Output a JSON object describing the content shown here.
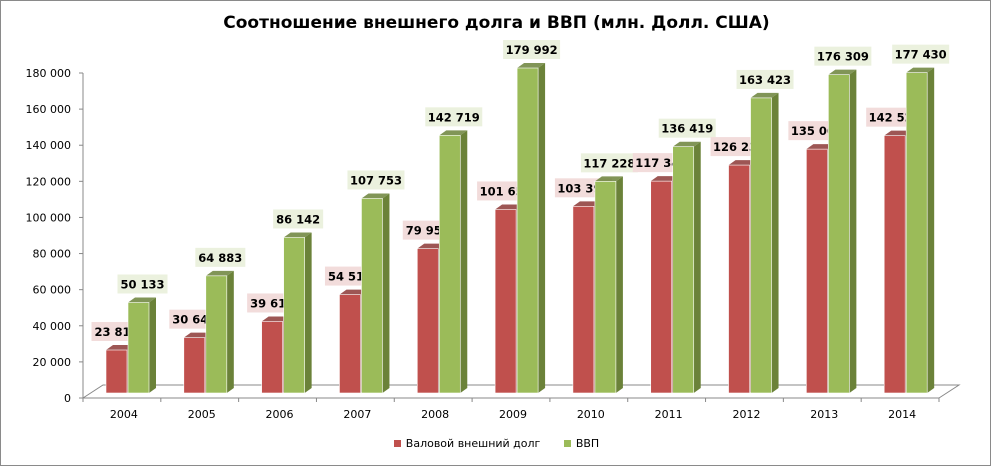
{
  "chart_data": {
    "type": "bar",
    "title": "Соотношение  внешнего долга и ВВП (млн. Долл. США)",
    "xlabel": "",
    "ylabel": "",
    "ylim": [
      0,
      180000
    ],
    "yticks": [
      "0",
      "20 000",
      "40 000",
      "60 000",
      "80 000",
      "100 000",
      "120 000",
      "140 000",
      "160 000",
      "180 000"
    ],
    "categories": [
      "2004",
      "2005",
      "2006",
      "2007",
      "2008",
      "2009",
      "2010",
      "2011",
      "2012",
      "2013",
      "2014"
    ],
    "series": [
      {
        "name": "Валовой внешний  долг",
        "color": "#c0504d",
        "side": "#8c3836",
        "label_bg": "#f2dcdb",
        "values": [
          23811,
          30647,
          39619,
          54512,
          79955,
          101659,
          103396,
          117346,
          126236,
          135065,
          142520
        ],
        "labels": [
          "23 811",
          "30 647",
          "39 619",
          "54 512",
          "79 955",
          "101 659",
          "103 396",
          "117 346",
          "126 236",
          "135 065",
          "142 520"
        ]
      },
      {
        "name": "ВВП",
        "color": "#9bbb59",
        "side": "#6b8239",
        "label_bg": "#ebf1de",
        "values": [
          50133,
          64883,
          86142,
          107753,
          142719,
          179992,
          117228,
          136419,
          163423,
          176309,
          177430
        ],
        "labels": [
          "50 133",
          "64 883",
          "86 142",
          "107 753",
          "142 719",
          "179 992",
          "117 228",
          "136 419",
          "163 423",
          "176 309",
          "177 430"
        ]
      }
    ],
    "grid": false,
    "legend": "bottom"
  }
}
